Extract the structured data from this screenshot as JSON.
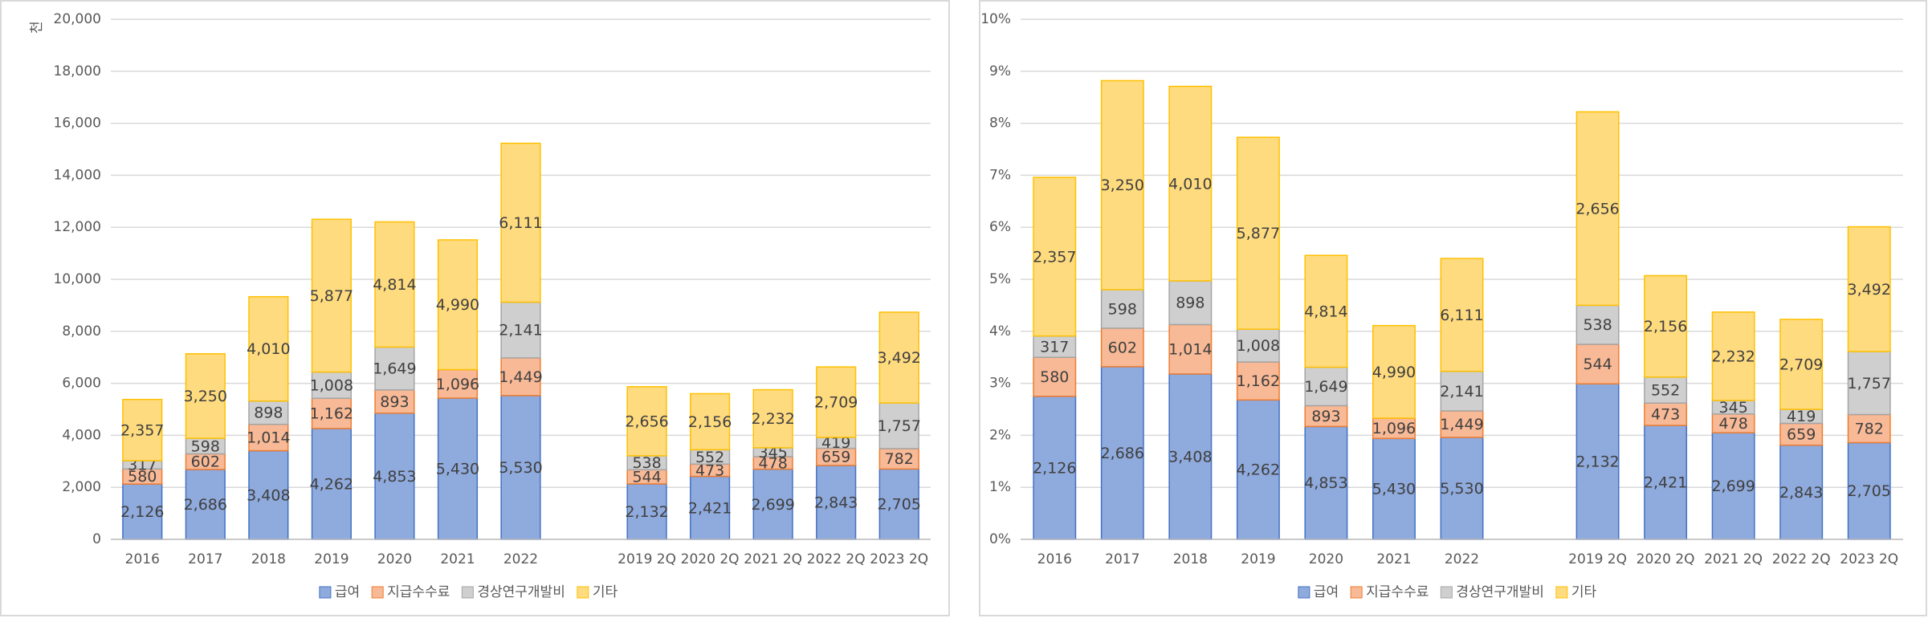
{
  "chart_data": [
    {
      "type": "stacked_bar",
      "y_unit": "천",
      "categories": [
        "2016",
        "2017",
        "2018",
        "2019",
        "2020",
        "2021",
        "2022",
        null,
        "2019 2Q",
        "2020 2Q",
        "2021 2Q",
        "2022 2Q",
        "2023 2Q"
      ],
      "ylim": [
        0,
        20000
      ],
      "yticks": [
        0,
        {
          "value": 2000,
          "label": "2,000"
        },
        {
          "value": 4000,
          "label": "4,000"
        },
        {
          "value": 6000,
          "label": "6,000"
        },
        {
          "value": 8000,
          "label": "8,000"
        },
        {
          "value": 10000,
          "label": "10,000"
        },
        {
          "value": 12000,
          "label": "12,000"
        },
        {
          "value": 14000,
          "label": "14,000"
        },
        {
          "value": 16000,
          "label": "16,000"
        },
        {
          "value": 18000,
          "label": "18,000"
        },
        {
          "value": 20000,
          "label": "20,000"
        }
      ],
      "grid": true,
      "legend": "bottom",
      "series": [
        {
          "name": "급여",
          "color": "#8faadc",
          "border": "#4472c4",
          "values": [
            2126,
            2686,
            3408,
            4262,
            4853,
            5430,
            5530,
            null,
            2132,
            2421,
            2699,
            2843,
            2705
          ],
          "value_labels": [
            "2,126",
            "2,686",
            "3,408",
            "4,262",
            "4,853",
            "5,430",
            "5,530",
            null,
            "2,132",
            "2,421",
            "2,699",
            "2,843",
            "2,705"
          ]
        },
        {
          "name": "지급수수료",
          "color": "#f8b996",
          "border": "#ed7d31",
          "values": [
            580,
            602,
            1014,
            1162,
            893,
            1096,
            1449,
            null,
            544,
            473,
            478,
            659,
            782
          ],
          "value_labels": [
            "580",
            "602",
            "1,014",
            "1,162",
            "893",
            "1,096",
            "1,449",
            null,
            "544",
            "473",
            "478",
            "659",
            "782"
          ]
        },
        {
          "name": "경상연구개발비",
          "color": "#cfcfcf",
          "border": "#a5a5a5",
          "values": [
            317,
            598,
            898,
            1008,
            1649,
            null,
            2141,
            null,
            538,
            552,
            345,
            419,
            1757
          ],
          "value_labels": [
            "317",
            "598",
            "898",
            "1,008",
            "1,649",
            null,
            "2,141",
            null,
            "538",
            "552",
            "345",
            "419",
            "1,757"
          ]
        },
        {
          "name": "기타",
          "color": "#ffdb7f",
          "border": "#ffc000",
          "values": [
            2357,
            3250,
            4010,
            5877,
            4814,
            4990,
            6111,
            null,
            2656,
            2156,
            2232,
            2709,
            3492
          ],
          "value_labels": [
            "2,357",
            "3,250",
            "4,010",
            "5,877",
            "4,814",
            "4,990",
            "6,111",
            null,
            "2,656",
            "2,156",
            "2,232",
            "2,709",
            "3,492"
          ]
        }
      ]
    },
    {
      "type": "stacked_bar",
      "categories": [
        "2016",
        "2017",
        "2018",
        "2019",
        "2020",
        "2021",
        "2022",
        null,
        "2019 2Q",
        "2020 2Q",
        "2021 2Q",
        "2022 2Q",
        "2023 2Q"
      ],
      "ylim": [
        0,
        10
      ],
      "yticks": [
        {
          "value": 0,
          "label": "0%"
        },
        {
          "value": 1,
          "label": "1%"
        },
        {
          "value": 2,
          "label": "2%"
        },
        {
          "value": 3,
          "label": "3%"
        },
        {
          "value": 4,
          "label": "4%"
        },
        {
          "value": 5,
          "label": "5%"
        },
        {
          "value": 6,
          "label": "6%"
        },
        {
          "value": 7,
          "label": "7%"
        },
        {
          "value": 8,
          "label": "8%"
        },
        {
          "value": 9,
          "label": "9%"
        },
        {
          "value": 10,
          "label": "10%"
        }
      ],
      "grid": true,
      "legend": "bottom",
      "series": [
        {
          "name": "급여",
          "color": "#8faadc",
          "border": "#4472c4",
          "values": [
            2.75,
            3.32,
            3.18,
            2.68,
            2.17,
            1.94,
            1.96,
            null,
            2.99,
            2.19,
            2.05,
            1.81,
            1.86
          ],
          "amount_labels": [
            "2,126",
            "2,686",
            "3,408",
            "4,262",
            "4,853",
            "5,430",
            "5,530",
            null,
            "2,132",
            "2,421",
            "2,699",
            "2,843",
            "2,705"
          ]
        },
        {
          "name": "지급수수료",
          "color": "#f8b996",
          "border": "#ed7d31",
          "values": [
            0.75,
            0.74,
            0.95,
            0.73,
            0.4,
            0.39,
            0.51,
            null,
            0.76,
            0.43,
            0.36,
            0.42,
            0.54
          ],
          "amount_labels": [
            "580",
            "602",
            "1,014",
            "1,162",
            "893",
            "1,096",
            "1,449",
            null,
            "544",
            "473",
            "478",
            "659",
            "782"
          ]
        },
        {
          "name": "경상연구개발비",
          "color": "#cfcfcf",
          "border": "#a5a5a5",
          "values": [
            0.41,
            0.74,
            0.84,
            0.63,
            0.74,
            null,
            0.76,
            null,
            0.75,
            0.5,
            0.26,
            0.27,
            1.21
          ],
          "amount_labels": [
            "317",
            "598",
            "898",
            "1,008",
            "1,649",
            null,
            "2,141",
            null,
            "538",
            "552",
            "345",
            "419",
            "1,757"
          ]
        },
        {
          "name": "기타",
          "color": "#ffdb7f",
          "border": "#ffc000",
          "values": [
            3.05,
            4.02,
            3.74,
            3.69,
            2.15,
            1.78,
            2.17,
            null,
            3.72,
            1.95,
            1.7,
            1.73,
            2.4
          ],
          "amount_labels": [
            "2,357",
            "3,250",
            "4,010",
            "5,877",
            "4,814",
            "4,990",
            "6,111",
            null,
            "2,656",
            "2,156",
            "2,232",
            "2,709",
            "3,492"
          ]
        }
      ]
    }
  ]
}
